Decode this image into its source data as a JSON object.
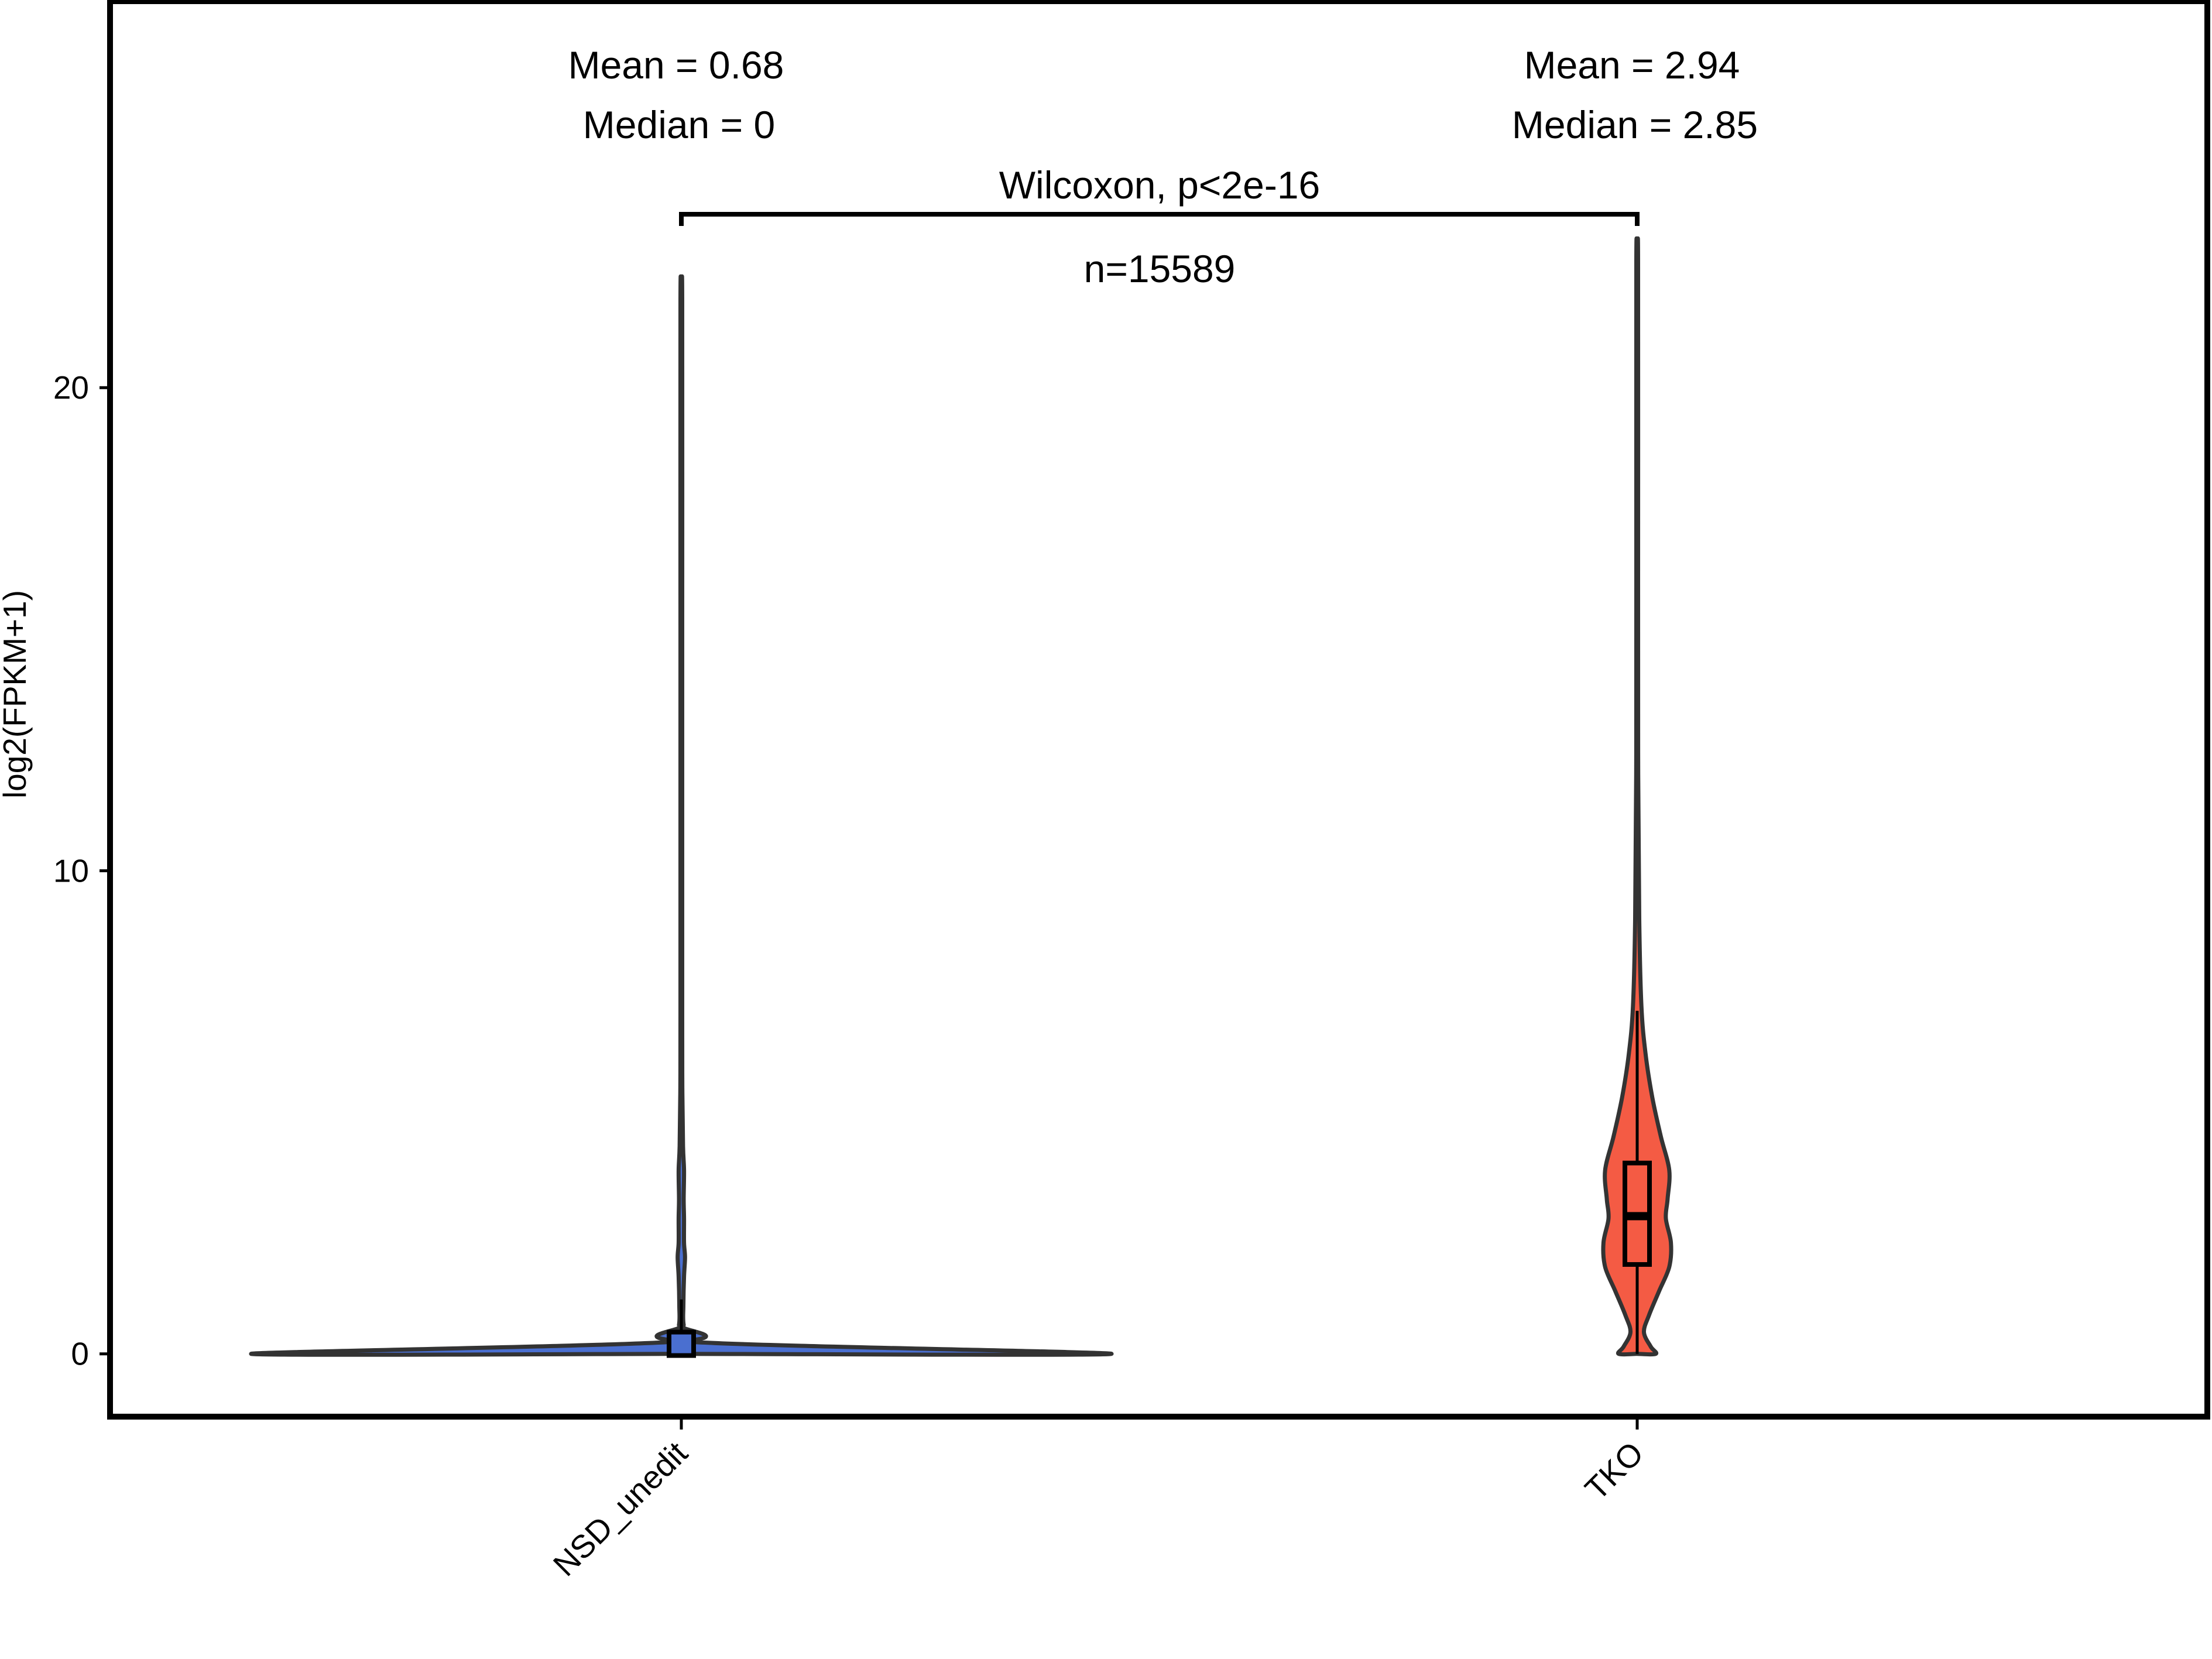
{
  "chart_data": {
    "type": "violin",
    "title": "",
    "xlabel": "",
    "ylabel": "log2(FPKM+1)",
    "ylim": [
      -1.3,
      28
    ],
    "y_ticks": [
      0,
      10,
      20
    ],
    "categories": [
      "NSD_unedit",
      "TKO"
    ],
    "groups": [
      {
        "name": "NSD_unedit",
        "fill": "#4a6fd0",
        "stats_line1": "Mean = 0.68",
        "stats_line2": "Median = 0",
        "mean": 0.68,
        "median": 0,
        "min": 0,
        "max": 21.8,
        "q1": 0,
        "q3": 0.45,
        "density_profile": [
          [
            0,
            2.55
          ],
          [
            0.25,
            0.05
          ],
          [
            0.6,
            0.014
          ],
          [
            1.0,
            0.012
          ],
          [
            1.6,
            0.016
          ],
          [
            2.0,
            0.022
          ],
          [
            2.3,
            0.016
          ],
          [
            2.8,
            0.016
          ],
          [
            3.2,
            0.014
          ],
          [
            3.8,
            0.016
          ],
          [
            4.3,
            0.01
          ],
          [
            5.5,
            0.006
          ],
          [
            7,
            0.004
          ],
          [
            10,
            0.003
          ],
          [
            15,
            0.002
          ],
          [
            21.8,
            0.001
          ]
        ]
      },
      {
        "name": "TKO",
        "fill": "#f45b44",
        "stats_line1": "Mean = 2.94",
        "stats_line2": "Median = 2.85",
        "mean": 2.94,
        "median": 2.85,
        "min": 0,
        "max": 22.6,
        "q1": 1.85,
        "q3": 3.95,
        "density_profile": [
          [
            0,
            0.11
          ],
          [
            0.15,
            0.08
          ],
          [
            0.45,
            0.04
          ],
          [
            0.8,
            0.07
          ],
          [
            1.3,
            0.13
          ],
          [
            1.8,
            0.19
          ],
          [
            2.3,
            0.2
          ],
          [
            2.8,
            0.17
          ],
          [
            3.2,
            0.18
          ],
          [
            3.8,
            0.19
          ],
          [
            4.5,
            0.14
          ],
          [
            5.3,
            0.09
          ],
          [
            6.2,
            0.05
          ],
          [
            7.2,
            0.025
          ],
          [
            9,
            0.012
          ],
          [
            12,
            0.006
          ],
          [
            16,
            0.004
          ],
          [
            22.6,
            0.001
          ]
        ]
      }
    ],
    "comparison": {
      "test_label": "Wilcoxon, p<2e-16",
      "n_label": "n=15589"
    },
    "grid": false,
    "legend": "none"
  }
}
